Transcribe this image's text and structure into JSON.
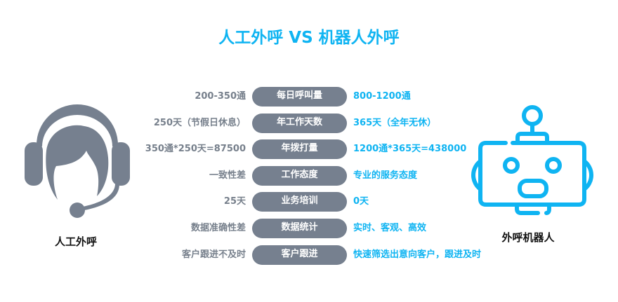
{
  "title": "人工外呼 VS 机器人外呼",
  "colors": {
    "accent": "#0fb4f2",
    "pill": "#76808f",
    "muted": "#77808c"
  },
  "human": {
    "label": "人工外呼",
    "icon": "headset-agent-icon"
  },
  "robot": {
    "label": "外呼机器人",
    "icon": "robot-icon"
  },
  "rows": [
    {
      "left": "200-350通",
      "category": "每日呼叫量",
      "right": "800-1200通"
    },
    {
      "left": "250天（节假日休息）",
      "category": "年工作天数",
      "right": "365天（全年无休）"
    },
    {
      "left": "350通*250天=87500",
      "category": "年拨打量",
      "right": "1200通*365天=438000"
    },
    {
      "left": "一致性差",
      "category": "工作态度",
      "right": "专业的服务态度"
    },
    {
      "left": "25天",
      "category": "业务培训",
      "right": "0天"
    },
    {
      "left": "数据准确性差",
      "category": "数据统计",
      "right": "实时、客观、高效"
    },
    {
      "left": "客户跟进不及时",
      "category": "客户跟进",
      "right": "快速筛选出意向客户，跟进及时"
    }
  ]
}
